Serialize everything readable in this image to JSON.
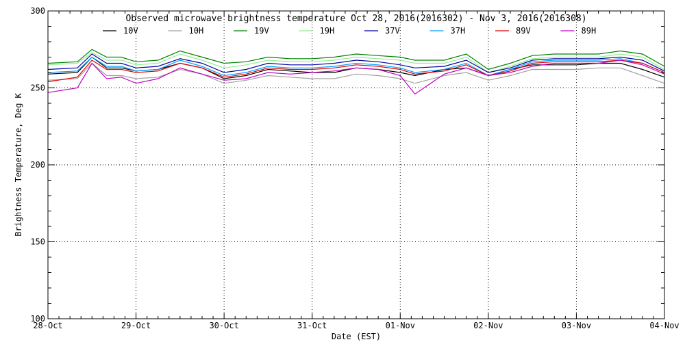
{
  "chart_data": {
    "type": "line",
    "title": "Observed microwave brightness temperature Oct 28, 2016(2016302) - Nov  3, 2016(2016308)",
    "xlabel": "Date (EST)",
    "ylabel": "Brightness Temperature, Deg K",
    "x_ticks": [
      "28-Oct",
      "29-Oct",
      "30-Oct",
      "31-Oct",
      "01-Nov",
      "02-Nov",
      "03-Nov",
      "04-Nov"
    ],
    "y_ticks": [
      "100",
      "150",
      "200",
      "250",
      "300"
    ],
    "xlim": [
      "2016-10-28",
      "2016-11-04"
    ],
    "ylim": [
      100,
      300
    ],
    "grid": true,
    "legend_position": "top",
    "x": [
      "2016-10-28 00:00",
      "2016-10-28 08:00",
      "2016-10-28 12:00",
      "2016-10-28 16:00",
      "2016-10-28 20:00",
      "2016-10-29 00:00",
      "2016-10-29 06:00",
      "2016-10-29 12:00",
      "2016-10-29 18:00",
      "2016-10-30 00:00",
      "2016-10-30 06:00",
      "2016-10-30 12:00",
      "2016-10-30 18:00",
      "2016-10-31 00:00",
      "2016-10-31 06:00",
      "2016-10-31 12:00",
      "2016-10-31 18:00",
      "2016-11-01 00:00",
      "2016-11-01 04:00",
      "2016-11-01 12:00",
      "2016-11-01 18:00",
      "2016-11-02 00:00",
      "2016-11-02 06:00",
      "2016-11-02 12:00",
      "2016-11-02 18:00",
      "2016-11-03 00:00",
      "2016-11-03 06:00",
      "2016-11-03 12:00",
      "2016-11-03 18:00",
      "2016-11-04 00:00"
    ],
    "series": [
      {
        "name": "10V",
        "color": "#000000",
        "values": [
          259,
          260,
          270,
          263,
          263,
          261,
          262,
          266,
          263,
          256,
          258,
          262,
          261,
          260,
          260,
          263,
          262,
          260,
          258,
          262,
          263,
          258,
          262,
          265,
          265,
          265,
          266,
          266,
          262,
          257
        ]
      },
      {
        "name": "10H",
        "color": "#a0a0a0",
        "values": [
          255,
          256,
          266,
          258,
          258,
          256,
          257,
          262,
          259,
          253,
          255,
          258,
          257,
          256,
          256,
          259,
          258,
          256,
          253,
          258,
          260,
          255,
          258,
          262,
          262,
          262,
          263,
          263,
          258,
          253
        ]
      },
      {
        "name": "19V",
        "color": "#008000",
        "values": [
          266,
          267,
          275,
          270,
          270,
          267,
          268,
          274,
          270,
          266,
          267,
          270,
          269,
          269,
          270,
          272,
          271,
          270,
          268,
          268,
          272,
          262,
          266,
          271,
          272,
          272,
          272,
          274,
          272,
          264
        ]
      },
      {
        "name": "19H",
        "color": "#90ee90",
        "values": [
          265,
          266,
          273,
          268,
          268,
          265,
          266,
          272,
          268,
          263,
          265,
          268,
          267,
          267,
          268,
          270,
          269,
          268,
          266,
          266,
          270,
          260,
          264,
          269,
          270,
          270,
          270,
          272,
          270,
          262
        ]
      },
      {
        "name": "37V",
        "color": "#0000a0",
        "values": [
          262,
          263,
          272,
          266,
          266,
          263,
          264,
          269,
          266,
          260,
          262,
          266,
          265,
          265,
          266,
          268,
          267,
          265,
          263,
          264,
          268,
          260,
          263,
          268,
          269,
          269,
          269,
          270,
          268,
          261
        ]
      },
      {
        "name": "37H",
        "color": "#00a0ff",
        "values": [
          260,
          261,
          270,
          264,
          264,
          261,
          262,
          268,
          264,
          258,
          260,
          264,
          263,
          263,
          264,
          266,
          265,
          263,
          260,
          262,
          266,
          258,
          262,
          267,
          268,
          268,
          268,
          269,
          266,
          260
        ]
      },
      {
        "name": "89V",
        "color": "#e00000",
        "values": [
          254,
          257,
          268,
          262,
          262,
          260,
          261,
          266,
          263,
          257,
          259,
          263,
          262,
          262,
          263,
          265,
          264,
          262,
          259,
          261,
          265,
          258,
          261,
          266,
          267,
          267,
          267,
          268,
          266,
          260
        ]
      },
      {
        "name": "89H",
        "color": "#c000c0",
        "values": [
          247,
          250,
          266,
          256,
          257,
          253,
          256,
          263,
          259,
          255,
          256,
          260,
          259,
          260,
          261,
          263,
          262,
          258,
          246,
          259,
          263,
          258,
          260,
          264,
          266,
          266,
          266,
          268,
          265,
          259
        ]
      }
    ]
  }
}
